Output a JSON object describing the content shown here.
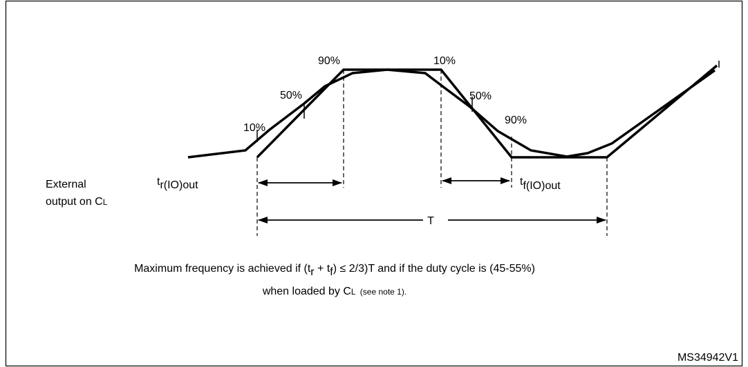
{
  "figure": {
    "rise_labels": [
      "10%",
      "50%",
      "90%"
    ],
    "fall_labels": [
      "10%",
      "50%",
      "90%"
    ],
    "rise_time": {
      "symbol": "t",
      "subscript": "r(IO)out"
    },
    "fall_time": {
      "symbol": "t",
      "subscript": "f(IO)out"
    },
    "period": "T",
    "signal_label": {
      "line1": "External",
      "line2_main": "output on C",
      "line2_sub": "L"
    },
    "caption": {
      "line1": [
        "Maximum frequency is achieved if (t",
        "r",
        " + t",
        "f",
        ") ≤ 2/3)T and if the duty cycle is (45-55%)"
      ],
      "line2": [
        "when loaded by C",
        "L",
        "  (see note 1)."
      ]
    },
    "figure_id": "MS34942V1"
  }
}
